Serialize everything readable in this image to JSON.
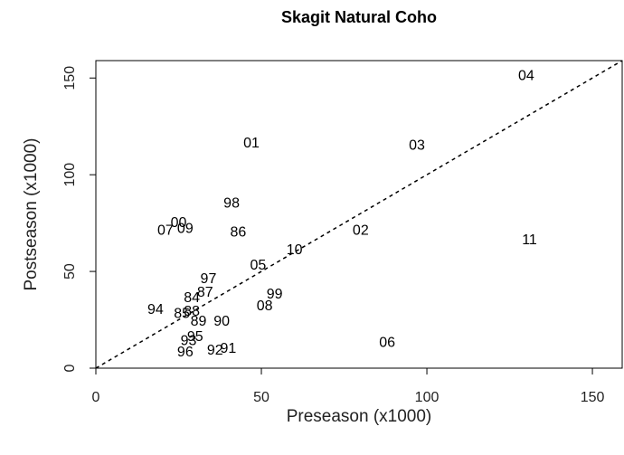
{
  "chart_data": {
    "type": "scatter",
    "title": "Skagit Natural Coho",
    "xlabel": "Preseason (x1000)",
    "ylabel": "Postseason (x1000)",
    "labels": [
      "04",
      "01",
      "03",
      "98",
      "00",
      "07",
      "09",
      "86",
      "02",
      "11",
      "10",
      "05",
      "97",
      "99",
      "87",
      "84",
      "08",
      "94",
      "85",
      "88",
      "89",
      "90",
      "95",
      "93",
      "06",
      "91",
      "92",
      "96"
    ],
    "x": [
      130,
      47,
      97,
      41,
      25,
      21,
      27,
      43,
      80,
      131,
      60,
      49,
      34,
      54,
      33,
      29,
      51,
      18,
      26,
      29,
      31,
      38,
      30,
      28,
      88,
      40,
      36,
      27
    ],
    "y": [
      151,
      116,
      115,
      85,
      75,
      71,
      72,
      70,
      71,
      66,
      61,
      53,
      46,
      38,
      39,
      36,
      32,
      30,
      28,
      29,
      24,
      24,
      16,
      14,
      13,
      10,
      9,
      8
    ],
    "xlim": [
      0,
      159
    ],
    "ylim": [
      0,
      159
    ],
    "xticks": [
      0,
      50,
      100,
      150
    ],
    "yticks": [
      0,
      50,
      100,
      150
    ],
    "abline": {
      "intercept": 0,
      "slope": 1
    },
    "color": "#000000"
  }
}
